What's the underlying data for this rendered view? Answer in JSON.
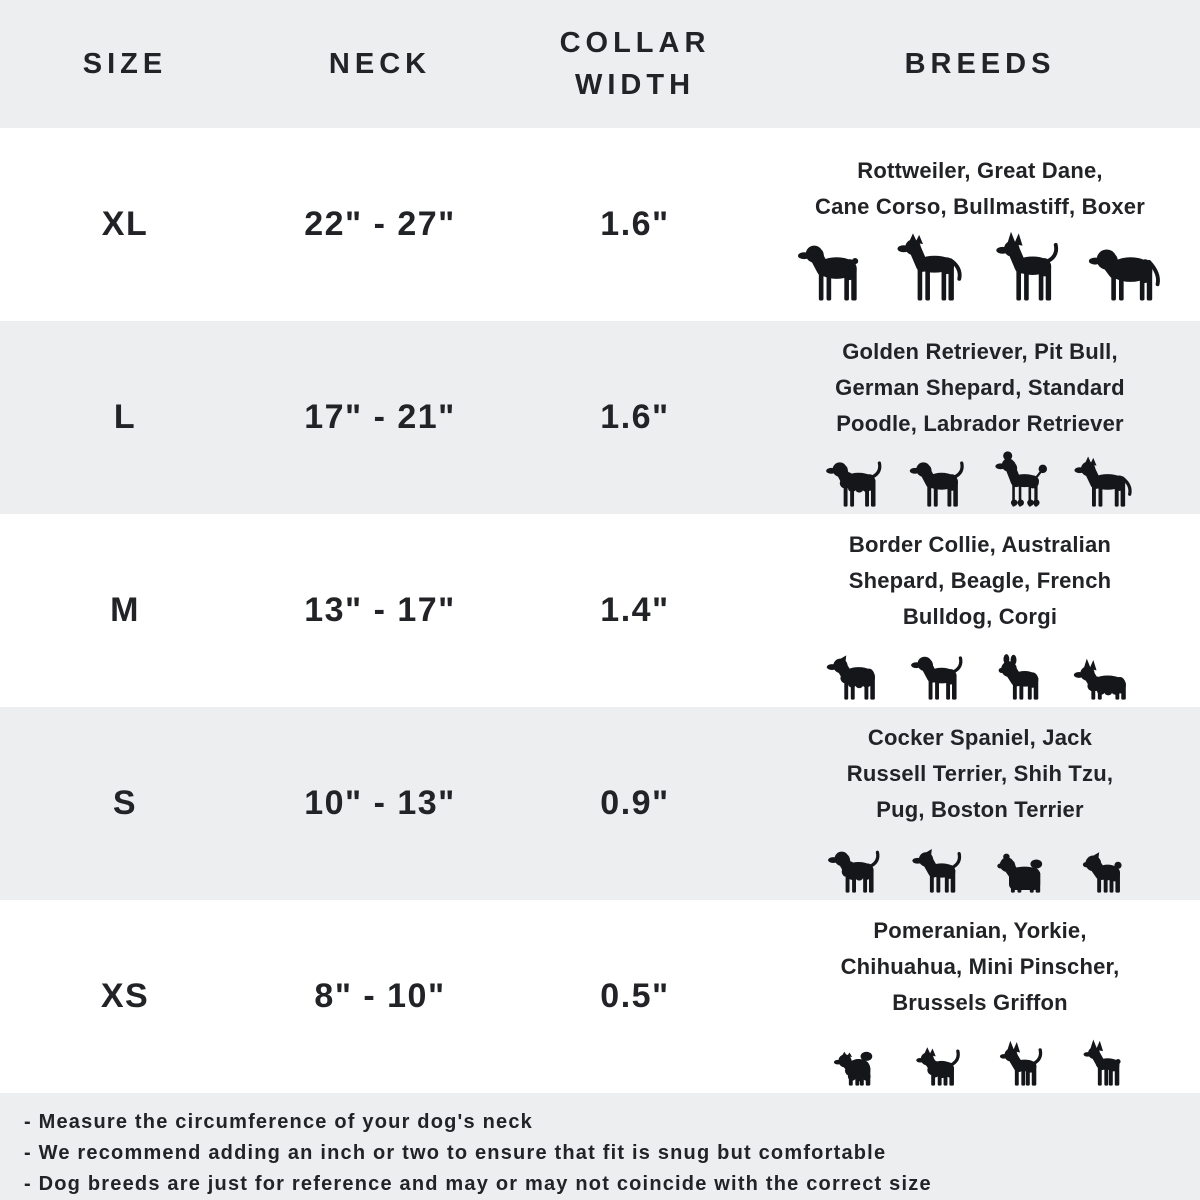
{
  "colors": {
    "background": "#ffffff",
    "alt_row_background": "#eceef0",
    "text": "#222326",
    "silhouette": "#14161a"
  },
  "chart_data": {
    "type": "table",
    "columns": [
      "SIZE",
      "NECK",
      "COLLAR WIDTH",
      "BREEDS"
    ],
    "rows": [
      {
        "size": "XL",
        "neck": "22\" - 27\"",
        "collar_width": "1.6\"",
        "breeds": "Rottweiler, Great Dane,\nCane Corso, Bullmastiff, Boxer",
        "icons": [
          "rottweiler-icon",
          "great-dane-icon",
          "cane-corso-icon",
          "bullmastiff-icon"
        ]
      },
      {
        "size": "L",
        "neck": "17\" - 21\"",
        "collar_width": "1.6\"",
        "breeds": "Golden Retriever, Pit Bull,\nGerman Shepard, Standard\nPoodle, Labrador Retriever",
        "icons": [
          "golden-retriever-icon",
          "labrador-icon",
          "poodle-icon",
          "german-shepherd-icon"
        ]
      },
      {
        "size": "M",
        "neck": "13\" - 17\"",
        "collar_width": "1.4\"",
        "breeds": "Border Collie, Australian\nShepard, Beagle, French\nBulldog, Corgi",
        "icons": [
          "australian-shepherd-icon",
          "beagle-icon",
          "french-bulldog-icon",
          "corgi-icon"
        ]
      },
      {
        "size": "S",
        "neck": "10\" - 13\"",
        "collar_width": "0.9\"",
        "breeds": "Cocker Spaniel, Jack\nRussell Terrier, Shih Tzu,\nPug, Boston Terrier",
        "icons": [
          "cocker-spaniel-icon",
          "jack-russell-icon",
          "shih-tzu-icon",
          "pug-icon"
        ]
      },
      {
        "size": "XS",
        "neck": "8\" - 10\"",
        "collar_width": "0.5\"",
        "breeds": "Pomeranian, Yorkie,\nChihuahua, Mini Pinscher,\nBrussels Griffon",
        "icons": [
          "pomeranian-icon",
          "yorkie-icon",
          "chihuahua-icon",
          "min-pin-icon"
        ]
      }
    ],
    "notes": [
      "- Measure the circumference of your dog's neck",
      "- We recommend adding an inch or two to ensure that fit is snug but comfortable",
      "- Dog breeds are just for reference and may or may not coincide with the correct size"
    ]
  }
}
